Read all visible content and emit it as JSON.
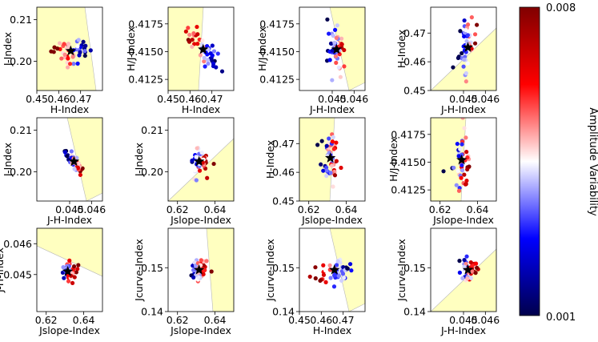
{
  "figure": {
    "colorbar": {
      "label": "Amplitude Variability",
      "vmin_label": "0.001",
      "vmax_label": "0.008",
      "vmin": 0.001,
      "vmax": 0.008,
      "colormap": "seismic"
    }
  },
  "chart_data": [
    {
      "type": "scatter",
      "xlabel": "H-Index",
      "ylabel": "J-Index",
      "xlim": [
        0.45,
        0.48
      ],
      "ylim": [
        0.193,
        0.213
      ],
      "xticks": [
        0.45,
        0.46,
        0.47
      ],
      "xtick_labels": [
        "0.45",
        "0.46",
        "0.47"
      ],
      "yticks": [
        0.2,
        0.21
      ],
      "ytick_labels": [
        "0.20",
        "0.21"
      ],
      "star": [
        0.4655,
        0.2025
      ],
      "region": "upper-left",
      "cluster": {
        "type": "horizontal",
        "sx": 0.0045,
        "sy": 0.0015
      }
    },
    {
      "type": "scatter",
      "xlabel": "H-Index",
      "ylabel": "H/J-Index",
      "xlim": [
        0.45,
        0.48
      ],
      "ylim": [
        0.4115,
        0.419
      ],
      "xticks": [
        0.45,
        0.46,
        0.47
      ],
      "xtick_labels": [
        "0.45",
        "0.46",
        "0.47"
      ],
      "yticks": [
        0.4125,
        0.415,
        0.4175
      ],
      "ytick_labels": [
        "0.4125",
        "0.4150",
        "0.4175"
      ],
      "star": [
        0.466,
        0.4152
      ],
      "region": "left",
      "cluster": {
        "type": "diag_down",
        "sx": 0.0045,
        "sy": 0.0012
      }
    },
    {
      "type": "scatter",
      "xlabel": "J-H-Index",
      "ylabel": "H/J-Index",
      "xlim": [
        0.0435,
        0.0465
      ],
      "ylim": [
        0.4115,
        0.419
      ],
      "xticks": [
        0.045,
        0.046
      ],
      "xtick_labels": [
        "0.045",
        "0.046"
      ],
      "yticks": [
        0.4125,
        0.415,
        0.4175
      ],
      "ytick_labels": [
        "0.4125",
        "0.4150",
        "0.4175"
      ],
      "star": [
        0.0452,
        0.4152
      ],
      "region": "upper-right",
      "cluster": {
        "type": "vertical",
        "sx": 0.0002,
        "sy": 0.0012
      }
    },
    {
      "type": "scatter",
      "xlabel": "J-H-Index",
      "ylabel": "H-Index",
      "xlim": [
        0.0435,
        0.0465
      ],
      "ylim": [
        0.45,
        0.479
      ],
      "xticks": [
        0.045,
        0.046
      ],
      "xtick_labels": [
        "0.045",
        "0.046"
      ],
      "yticks": [
        0.45,
        0.46,
        0.47
      ],
      "ytick_labels": [
        "0.45",
        "0.46",
        "0.47"
      ],
      "star": [
        0.0452,
        0.465
      ],
      "region": "lower-right",
      "cluster": {
        "type": "vertical",
        "sx": 0.0002,
        "sy": 0.0045
      }
    },
    {
      "type": "scatter",
      "xlabel": "J-H-Index",
      "ylabel": "J-Index",
      "xlim": [
        0.0435,
        0.0465
      ],
      "ylim": [
        0.193,
        0.213
      ],
      "xticks": [
        0.045,
        0.046
      ],
      "xtick_labels": [
        "0.045",
        "0.046"
      ],
      "yticks": [
        0.2,
        0.21
      ],
      "ytick_labels": [
        "0.20",
        "0.21"
      ],
      "star": [
        0.0452,
        0.2025
      ],
      "region": "upper-right",
      "cluster": {
        "type": "diag_down",
        "sx": 0.0002,
        "sy": 0.0016
      }
    },
    {
      "type": "scatter",
      "xlabel": "Jslope-Index",
      "ylabel": "J-Index",
      "xlim": [
        0.615,
        0.65
      ],
      "ylim": [
        0.193,
        0.213
      ],
      "xticks": [
        0.62,
        0.64
      ],
      "xtick_labels": [
        "0.62",
        "0.64"
      ],
      "yticks": [
        0.2,
        0.21
      ],
      "ytick_labels": [
        "0.20",
        "0.21"
      ],
      "star": [
        0.6315,
        0.2025
      ],
      "region": "lower-right",
      "cluster": {
        "type": "round",
        "sx": 0.0024,
        "sy": 0.0015
      }
    },
    {
      "type": "scatter",
      "xlabel": "Jslope-Index",
      "ylabel": "H-Index",
      "xlim": [
        0.615,
        0.65
      ],
      "ylim": [
        0.45,
        0.479
      ],
      "xticks": [
        0.62,
        0.64
      ],
      "xtick_labels": [
        "0.62",
        "0.64"
      ],
      "yticks": [
        0.45,
        0.46,
        0.47
      ],
      "ytick_labels": [
        "0.45",
        "0.46",
        "0.47"
      ],
      "star": [
        0.6315,
        0.465
      ],
      "region": "left",
      "cluster": {
        "type": "round",
        "sx": 0.0024,
        "sy": 0.0045
      }
    },
    {
      "type": "scatter",
      "xlabel": "Jslope-Index",
      "ylabel": "H/J-Index",
      "xlim": [
        0.615,
        0.65
      ],
      "ylim": [
        0.4115,
        0.419
      ],
      "xticks": [
        0.62,
        0.64
      ],
      "xtick_labels": [
        "0.62",
        "0.64"
      ],
      "yticks": [
        0.4125,
        0.415,
        0.4175
      ],
      "ytick_labels": [
        "0.4125",
        "0.4150",
        "0.4175"
      ],
      "star": [
        0.6315,
        0.4152
      ],
      "region": "left",
      "cluster": {
        "type": "round",
        "sx": 0.0024,
        "sy": 0.0012
      }
    },
    {
      "type": "scatter",
      "xlabel": "Jslope-Index",
      "ylabel": "J-H-Index",
      "xlim": [
        0.615,
        0.65
      ],
      "ylim": [
        0.0438,
        0.0465
      ],
      "xticks": [
        0.62,
        0.64
      ],
      "xtick_labels": [
        "0.62",
        "0.64"
      ],
      "yticks": [
        0.045,
        0.046
      ],
      "ytick_labels": [
        "0.045",
        "0.046"
      ],
      "star": [
        0.6315,
        0.0451
      ],
      "region": "upper",
      "cluster": {
        "type": "round",
        "sx": 0.0022,
        "sy": 0.00018
      }
    },
    {
      "type": "scatter",
      "xlabel": "Jslope-Index",
      "ylabel": "Jcurve-Index",
      "xlim": [
        0.615,
        0.65
      ],
      "ylim": [
        0.14,
        0.159
      ],
      "xticks": [
        0.62,
        0.64
      ],
      "xtick_labels": [
        "0.62",
        "0.64"
      ],
      "yticks": [
        0.14,
        0.15
      ],
      "ytick_labels": [
        "0.14",
        "0.15"
      ],
      "star": [
        0.6315,
        0.1495
      ],
      "region": "right",
      "cluster": {
        "type": "round",
        "sx": 0.0024,
        "sy": 0.0013
      }
    },
    {
      "type": "scatter",
      "xlabel": "H-Index",
      "ylabel": "Jcurve-Index",
      "xlim": [
        0.45,
        0.48
      ],
      "ylim": [
        0.14,
        0.159
      ],
      "xticks": [
        0.45,
        0.46,
        0.47
      ],
      "xtick_labels": [
        "0.45",
        "0.46",
        "0.47"
      ],
      "yticks": [
        0.14,
        0.15
      ],
      "ytick_labels": [
        "0.14",
        "0.15"
      ],
      "star": [
        0.466,
        0.1495
      ],
      "region": "upper-right",
      "cluster": {
        "type": "horizontal",
        "sx": 0.0045,
        "sy": 0.0013
      }
    },
    {
      "type": "scatter",
      "xlabel": "J-H-Index",
      "ylabel": "Jcurve-Index",
      "xlim": [
        0.0435,
        0.0465
      ],
      "ylim": [
        0.14,
        0.159
      ],
      "xticks": [
        0.045,
        0.046
      ],
      "xtick_labels": [
        "0.045",
        "0.046"
      ],
      "yticks": [
        0.14,
        0.15
      ],
      "ytick_labels": [
        "0.14",
        "0.15"
      ],
      "star": [
        0.0452,
        0.1495
      ],
      "region": "lower-right",
      "cluster": {
        "type": "round",
        "sx": 0.0002,
        "sy": 0.0013
      }
    }
  ]
}
